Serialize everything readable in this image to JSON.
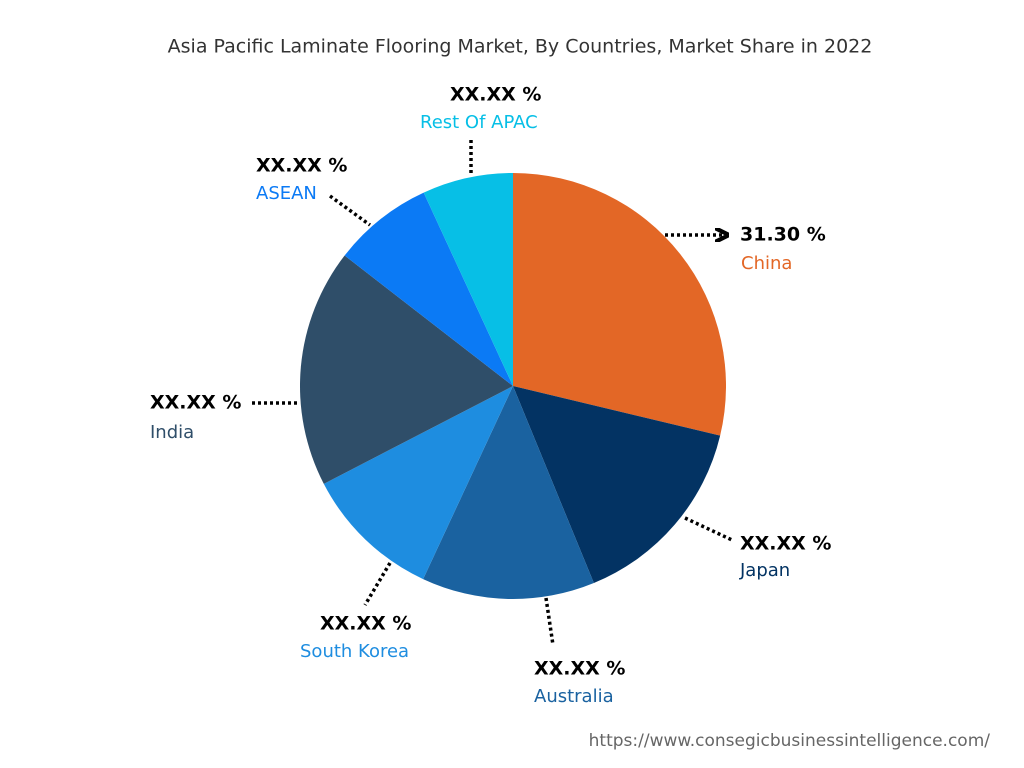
{
  "chart_data": {
    "type": "pie",
    "title": "Asia Pacific Laminate Flooring Market, By Countries, Market Share in 2022",
    "categories": [
      "China",
      "Japan",
      "Australia",
      "South Korea",
      "India",
      "ASEAN",
      "Rest Of APAC"
    ],
    "values": [
      31.3,
      16.4,
      14.3,
      11.4,
      19.7,
      8.3,
      7.5
    ],
    "value_labels": [
      "31.30 %",
      "XX.XX %",
      "XX.XX %",
      "XX.XX %",
      "XX.XX %",
      "XX.XX %",
      "XX.XX %"
    ],
    "colors": [
      "#e36726",
      "#033363",
      "#1a62a0",
      "#1e8de0",
      "#2f4e69",
      "#0b7af5",
      "#07bfe6"
    ],
    "source": "https://www.consegicbusinessintelligence.com/"
  }
}
